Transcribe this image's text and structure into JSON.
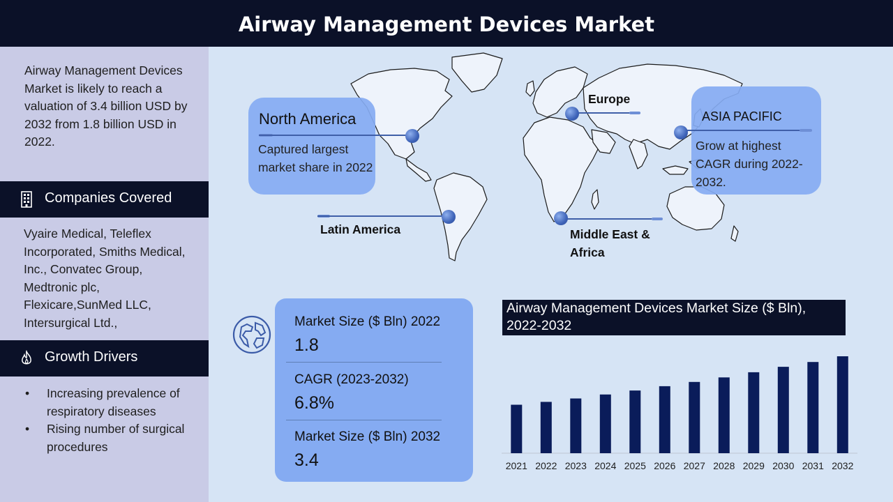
{
  "header": {
    "title": "Airway Management Devices Market"
  },
  "sidebar": {
    "intro": "Airway Management Devices Market is likely to reach a valuation of 3.4 billion USD by 2032 from 1.8 billion USD in 2022.",
    "companies_heading": "Companies Covered",
    "companies_icon": "building-icon",
    "companies_text": "Vyaire Medical, Teleflex Incorporated, Smiths Medical, Inc., Convatec Group, Medtronic plc, Flexicare,SunMed LLC, Intersurgical Ltd.,",
    "drivers_heading": "Growth Drivers",
    "drivers_icon": "flame-icon",
    "drivers": [
      "Increasing prevalence of respiratory diseases",
      "Rising number of surgical procedures"
    ]
  },
  "map": {
    "north_america": {
      "title": "North America",
      "desc": "Captured largest market share in 2022"
    },
    "europe": {
      "title": "Europe"
    },
    "asia_pacific": {
      "title": "ASIA PACIFIC",
      "desc": "Grow at highest CAGR during 2022-2032."
    },
    "latin_america": {
      "title": "Latin America"
    },
    "mea": {
      "title": "Middle East & Africa"
    }
  },
  "stats": {
    "icon": "globe-icon",
    "items": [
      {
        "label": "Market Size ($ Bln) 2022",
        "value": "1.8"
      },
      {
        "label": "CAGR (2023-2032)",
        "value": "6.8%"
      },
      {
        "label": "Market Size ($ Bln) 2032",
        "value": "3.4"
      }
    ]
  },
  "colors": {
    "navy": "#0b1128",
    "bar": "#0a1c5a",
    "panel_blue": "#85abf2",
    "sidebar": "#c9cbe6",
    "background": "#d6e4f5"
  },
  "chart_data": {
    "type": "bar",
    "title": "Airway Management Devices Market Size ($ Bln), 2022-2032",
    "categories": [
      "2021",
      "2022",
      "2023",
      "2024",
      "2025",
      "2026",
      "2027",
      "2028",
      "2029",
      "2030",
      "2031",
      "2032"
    ],
    "values": [
      1.7,
      1.8,
      1.92,
      2.06,
      2.2,
      2.35,
      2.5,
      2.66,
      2.84,
      3.03,
      3.2,
      3.4
    ],
    "ylim": [
      0,
      3.4
    ],
    "grid": false,
    "legend": "none"
  }
}
